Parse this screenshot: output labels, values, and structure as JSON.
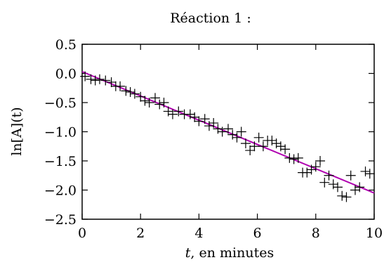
{
  "chart_data": {
    "type": "scatter",
    "title": "Réaction 1 :",
    "xlabel_var": "t",
    "xlabel_rest": ", en minutes",
    "ylabel": "ln[A](t)",
    "xlim": [
      0,
      10
    ],
    "ylim": [
      -2.5,
      0.5
    ],
    "xticks": [
      "0",
      "2",
      "4",
      "6",
      "8",
      "10"
    ],
    "yticks": [
      "0.5",
      "0.0",
      "−0.5",
      "−1.0",
      "−1.5",
      "−2.0",
      "−2.5"
    ],
    "grid": false,
    "series": [
      {
        "marker": "plus",
        "color": "#000000",
        "points": [
          [
            0.1,
            -0.05
          ],
          [
            0.3,
            -0.1
          ],
          [
            0.45,
            -0.12
          ],
          [
            0.6,
            -0.1
          ],
          [
            0.8,
            -0.12
          ],
          [
            1.0,
            -0.15
          ],
          [
            1.15,
            -0.22
          ],
          [
            1.3,
            -0.22
          ],
          [
            1.5,
            -0.3
          ],
          [
            1.65,
            -0.32
          ],
          [
            1.8,
            -0.35
          ],
          [
            2.0,
            -0.4
          ],
          [
            2.15,
            -0.47
          ],
          [
            2.3,
            -0.5
          ],
          [
            2.5,
            -0.42
          ],
          [
            2.65,
            -0.53
          ],
          [
            2.8,
            -0.5
          ],
          [
            2.95,
            -0.65
          ],
          [
            3.1,
            -0.7
          ],
          [
            3.3,
            -0.65
          ],
          [
            3.5,
            -0.7
          ],
          [
            3.7,
            -0.7
          ],
          [
            3.85,
            -0.75
          ],
          [
            4.0,
            -0.82
          ],
          [
            4.2,
            -0.78
          ],
          [
            4.35,
            -0.9
          ],
          [
            4.5,
            -0.85
          ],
          [
            4.65,
            -0.95
          ],
          [
            4.8,
            -1.0
          ],
          [
            5.0,
            -0.95
          ],
          [
            5.15,
            -1.05
          ],
          [
            5.3,
            -1.1
          ],
          [
            5.45,
            -1.0
          ],
          [
            5.6,
            -1.2
          ],
          [
            5.75,
            -1.32
          ],
          [
            5.9,
            -1.25
          ],
          [
            6.05,
            -1.1
          ],
          [
            6.2,
            -1.25
          ],
          [
            6.35,
            -1.15
          ],
          [
            6.5,
            -1.15
          ],
          [
            6.65,
            -1.2
          ],
          [
            6.8,
            -1.25
          ],
          [
            6.95,
            -1.3
          ],
          [
            7.1,
            -1.45
          ],
          [
            7.25,
            -1.47
          ],
          [
            7.4,
            -1.45
          ],
          [
            7.55,
            -1.7
          ],
          [
            7.7,
            -1.7
          ],
          [
            7.85,
            -1.65
          ],
          [
            8.0,
            -1.6
          ],
          [
            8.15,
            -1.5
          ],
          [
            8.3,
            -1.87
          ],
          [
            8.45,
            -1.75
          ],
          [
            8.6,
            -1.9
          ],
          [
            8.75,
            -1.95
          ],
          [
            8.9,
            -2.1
          ],
          [
            9.05,
            -2.12
          ],
          [
            9.2,
            -1.75
          ],
          [
            9.35,
            -2.0
          ],
          [
            9.5,
            -1.95
          ],
          [
            9.7,
            -1.68
          ],
          [
            9.85,
            -1.72
          ]
        ]
      }
    ],
    "fit_line": {
      "color": "#b000b0",
      "x": [
        0,
        10
      ],
      "y": [
        0.03,
        -2.05
      ]
    }
  }
}
